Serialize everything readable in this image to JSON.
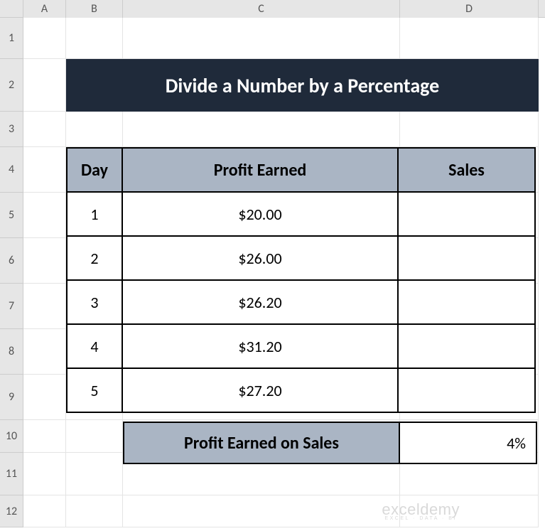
{
  "columns": {
    "labels": [
      "A",
      "B",
      "C",
      "D"
    ],
    "widths": [
      60,
      80,
      390,
      195
    ]
  },
  "rows": {
    "labels": [
      "1",
      "2",
      "3",
      "4",
      "5",
      "6",
      "7",
      "8",
      "9",
      "10",
      "11",
      "12"
    ],
    "heights": [
      58,
      74,
      50,
      64,
      64,
      64,
      64,
      64,
      64,
      46,
      60,
      45
    ]
  },
  "title": {
    "text": "Divide a Number by a Percentage",
    "bg": "#1f2a3a",
    "fg": "#ffffff",
    "fontsize": 28
  },
  "table": {
    "header_bg": "#aab5c4",
    "headers": [
      "Day",
      "Profit Earned",
      "Sales"
    ],
    "rows": [
      {
        "day": "1",
        "profit": "$20.00",
        "sales": ""
      },
      {
        "day": "2",
        "profit": "$26.00",
        "sales": ""
      },
      {
        "day": "3",
        "profit": "$26.20",
        "sales": ""
      },
      {
        "day": "4",
        "profit": "$31.20",
        "sales": ""
      },
      {
        "day": "5",
        "profit": "$27.20",
        "sales": ""
      }
    ]
  },
  "summary": {
    "label": "Profit Earned on Sales",
    "label_bg": "#aab5c4",
    "value": "4%"
  },
  "watermark": {
    "main": "exceldemy",
    "sub": "EXCEL · DATA · BI"
  },
  "colors": {
    "gridline": "#e4e4e4",
    "header_bg": "#e6e6e6",
    "border": "#000000"
  }
}
